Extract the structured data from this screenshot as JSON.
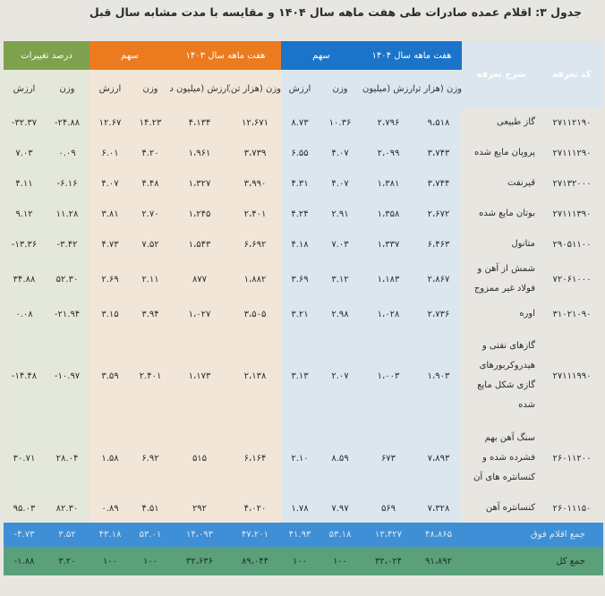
{
  "title": "جدول ۳: اقلام عمده صادرات طی هفت ماهه سال ۱۴۰۴ و مقایسه با مدت مشابه سال قبل",
  "headers": {
    "code": "کد تعرفه",
    "desc": "شرح تعرفه",
    "group_1404": "هفت ماهه سال ۱۴۰۴",
    "share_1404": "سهم",
    "group_1403": "هفت ماهه سال ۱۴۰۳",
    "share_1403": "سهم",
    "change": "درصد تغییرات",
    "weight_kt": "وزن (هزار تن)",
    "value_musd": "ارزش (میلیون دلار)",
    "weight": "وزن",
    "value": "ارزش"
  },
  "rows": [
    {
      "code": "۲۷۱۱۲۱۹۰",
      "desc": "گاز طبیعی",
      "w04": "۹،۵۱۸",
      "v04": "۲،۷۹۶",
      "sw04": "۱۰.۳۶",
      "sv04": "۸.۷۳",
      "w03": "۱۲،۶۷۱",
      "v03": "۴،۱۳۴",
      "sw03": "۱۴.۲۳",
      "sv03": "۱۲.۶۷",
      "cw": "-۲۴.۸۸",
      "cv": "-۳۲.۳۷"
    },
    {
      "code": "۲۷۱۱۱۲۹۰",
      "desc": "پروپان مایع شده",
      "w04": "۳،۷۴۳",
      "v04": "۲،۰۹۹",
      "sw04": "۴.۰۷",
      "sv04": "۶.۵۵",
      "w03": "۳،۷۳۹",
      "v03": "۱،۹۶۱",
      "sw03": "۴.۲۰",
      "sv03": "۶.۰۱",
      "cw": "۰.۰۹",
      "cv": "۷.۰۳"
    },
    {
      "code": "۲۷۱۳۲۰۰۰",
      "desc": "قیرنفت",
      "w04": "۳،۷۴۴",
      "v04": "۱،۳۸۱",
      "sw04": "۴.۰۷",
      "sv04": "۴.۳۱",
      "w03": "۳،۹۹۰",
      "v03": "۱،۳۲۷",
      "sw03": "۴.۴۸",
      "sv03": "۴.۰۷",
      "cw": "-۶.۱۶",
      "cv": "۴.۱۱"
    },
    {
      "code": "۲۷۱۱۱۳۹۰",
      "desc": "بوتان مایع شده",
      "w04": "۲،۶۷۲",
      "v04": "۱،۳۵۸",
      "sw04": "۲.۹۱",
      "sv04": "۴.۲۴",
      "w03": "۲،۴۰۱",
      "v03": "۱،۲۴۵",
      "sw03": "۲.۷۰",
      "sv03": "۳.۸۱",
      "cw": "۱۱.۲۸",
      "cv": "۹.۱۲"
    },
    {
      "code": "۲۹۰۵۱۱۰۰",
      "desc": "متانول",
      "w04": "۶،۴۶۳",
      "v04": "۱،۳۳۷",
      "sw04": "۷.۰۳",
      "sv04": "۴.۱۸",
      "w03": "۶،۶۹۲",
      "v03": "۱،۵۴۳",
      "sw03": "۷.۵۲",
      "sv03": "۴.۷۳",
      "cw": "-۳.۴۲",
      "cv": "-۱۳.۳۶"
    },
    {
      "code": "۷۲۰۶۱۰۰۰",
      "desc": "شمش از آهن و فولاد غیر ممزوج",
      "w04": "۲،۸۶۷",
      "v04": "۱،۱۸۳",
      "sw04": "۳.۱۲",
      "sv04": "۳.۶۹",
      "w03": "۱،۸۸۲",
      "v03": "۸۷۷",
      "sw03": "۲.۱۱",
      "sv03": "۲.۶۹",
      "cw": "۵۲.۳۰",
      "cv": "۳۴.۸۸"
    },
    {
      "code": "۳۱۰۲۱۰۹۰",
      "desc": "اوره",
      "w04": "۲،۷۳۶",
      "v04": "۱،۰۲۸",
      "sw04": "۲.۹۸",
      "sv04": "۳.۲۱",
      "w03": "۳،۵۰۵",
      "v03": "۱،۰۲۷",
      "sw03": "۳.۹۴",
      "sv03": "۳.۱۵",
      "cw": "-۲۱.۹۴",
      "cv": "۰.۰۸"
    },
    {
      "code": "۲۷۱۱۱۹۹۰",
      "desc": "گازهای نفتی و هیدروکربورهای گازی شکل مایع شده",
      "w04": "۱،۹۰۳",
      "v04": "۱،۰۰۳",
      "sw04": "۲.۰۷",
      "sv04": "۳.۱۳",
      "w03": "۲،۱۳۸",
      "v03": "۱،۱۷۳",
      "sw03": "۲.۴۰۱",
      "sv03": "۳.۵۹",
      "cw": "-۱۰.۹۷",
      "cv": "-۱۴.۴۸"
    },
    {
      "code": "۲۶۰۱۱۲۰۰",
      "desc": "سنگ آهن بهم فشرده شده و کنسانتره های آن",
      "w04": "۷،۸۹۳",
      "v04": "۶۷۳",
      "sw04": "۸.۵۹",
      "sv04": "۲.۱۰",
      "w03": "۶،۱۶۴",
      "v03": "۵۱۵",
      "sw03": "۶.۹۲",
      "sv03": "۱.۵۸",
      "cw": "۲۸.۰۴",
      "cv": "۳۰.۷۱"
    },
    {
      "code": "۲۶۰۱۱۱۵۰",
      "desc": "کنسانتره آهن",
      "w04": "۷،۳۲۸",
      "v04": "۵۶۹",
      "sw04": "۷.۹۷",
      "sv04": "۱.۷۸",
      "w03": "۴،۰۲۰",
      "v03": "۲۹۲",
      "sw03": "۴.۵۱",
      "sv03": "۰.۸۹",
      "cw": "۸۲.۳۰",
      "cv": "۹۵.۰۳"
    }
  ],
  "totals": [
    {
      "label": "جمع اقلام فوق",
      "w04": "۴۸،۸۶۵",
      "v04": "۱۳،۴۲۷",
      "sw04": "۵۳.۱۸",
      "sv04": "۴۱.۹۳",
      "w03": "۴۷،۲۰۱",
      "v03": "۱۴،۰۹۳",
      "sw03": "۵۳.۰۱",
      "sv03": "۴۳.۱۸",
      "cw": "۳.۵۲",
      "cv": "-۴.۷۳"
    },
    {
      "label": "جمع کل",
      "w04": "۹۱،۸۹۲",
      "v04": "۳۲،۰۲۴",
      "sw04": "۱۰۰",
      "sv04": "۱۰۰",
      "w03": "۸۹،۰۴۴",
      "v03": "۳۲،۶۳۶",
      "sw03": "۱۰۰",
      "sv03": "۱۰۰",
      "cw": "۳.۲۰",
      "cv": "-۱.۸۸"
    }
  ]
}
